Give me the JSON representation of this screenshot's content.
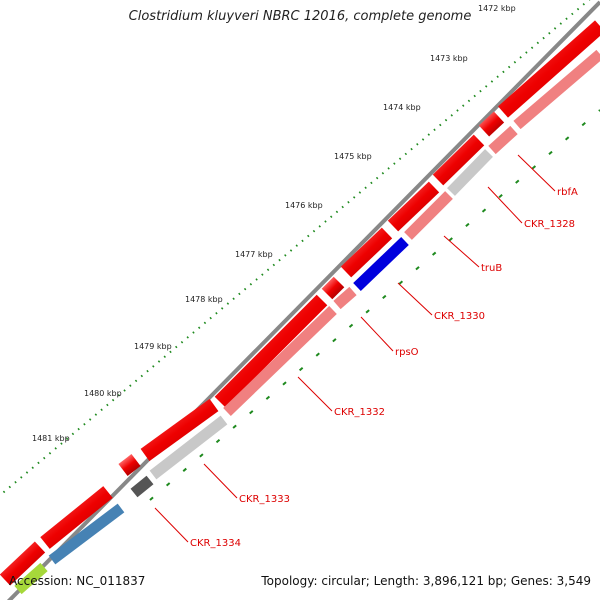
{
  "title": "Clostridium kluyveri NBRC 12016, complete genome",
  "footer": {
    "accession": "Accession: NC_011837",
    "summary": "Topology: circular; Length: 3,896,121 bp; Genes: 3,549"
  },
  "ticks": [
    "1472 kbp",
    "1473 kbp",
    "1474 kbp",
    "1475 kbp",
    "1476 kbp",
    "1477 kbp",
    "1478 kbp",
    "1479 kbp",
    "1480 kbp",
    "1481 kbp"
  ],
  "gene_labels": [
    "rbfA",
    "CKR_1328",
    "truB",
    "CKR_1330",
    "rpsO",
    "CKR_1332",
    "CKR_1333",
    "CKR_1334"
  ],
  "colors": {
    "outer_track": "#ee0000",
    "inner_track": "#f08080",
    "highlight_blue": "#0000dd",
    "steel_blue": "#4682b4",
    "gray": "#bbbbbb",
    "dark_gray": "#555555",
    "label_red": "#dd0000",
    "tick_green": "#228b22"
  }
}
